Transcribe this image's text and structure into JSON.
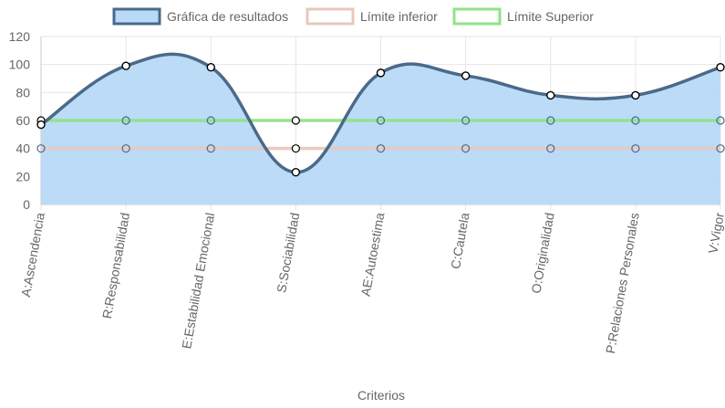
{
  "chart_data": {
    "type": "line",
    "xlabel": "Criterios",
    "ylabel": "",
    "ylim": [
      0,
      120
    ],
    "y_ticks": [
      0,
      20,
      40,
      60,
      80,
      100,
      120
    ],
    "grid": true,
    "legend_position": "top",
    "categories": [
      "A:Ascendencia",
      "R:Responsabilidad",
      "E:Estabilidad Emocional",
      "S:Sociabilidad",
      "AE:Autoestima",
      "C:Cautela",
      "O:Originalidad",
      "P:Relaciones Personales",
      "V:Vigor"
    ],
    "series": [
      {
        "name": "Gráfica de resultados",
        "values": [
          57,
          99,
          98,
          23,
          94,
          92,
          78,
          78,
          98
        ],
        "stroke": "#4a6a8a",
        "fill": "#b8d9f7",
        "legend_fill": "#b8d9f7"
      },
      {
        "name": "Límite inferior",
        "values": [
          40,
          40,
          40,
          40,
          40,
          40,
          40,
          40,
          40
        ],
        "stroke": "#e8c8bc",
        "fill": "none",
        "legend_fill": "#ffffff"
      },
      {
        "name": "Límite Superior",
        "values": [
          60,
          60,
          60,
          60,
          60,
          60,
          60,
          60,
          60
        ],
        "stroke": "#90e28a",
        "fill": "none",
        "legend_fill": "#ffffff"
      }
    ],
    "colors": {
      "grid": "#e6e6e6",
      "axis": "#c8c8c8",
      "text": "#666666",
      "point_fill": "#ffffff",
      "point_stroke": "#000000"
    }
  }
}
